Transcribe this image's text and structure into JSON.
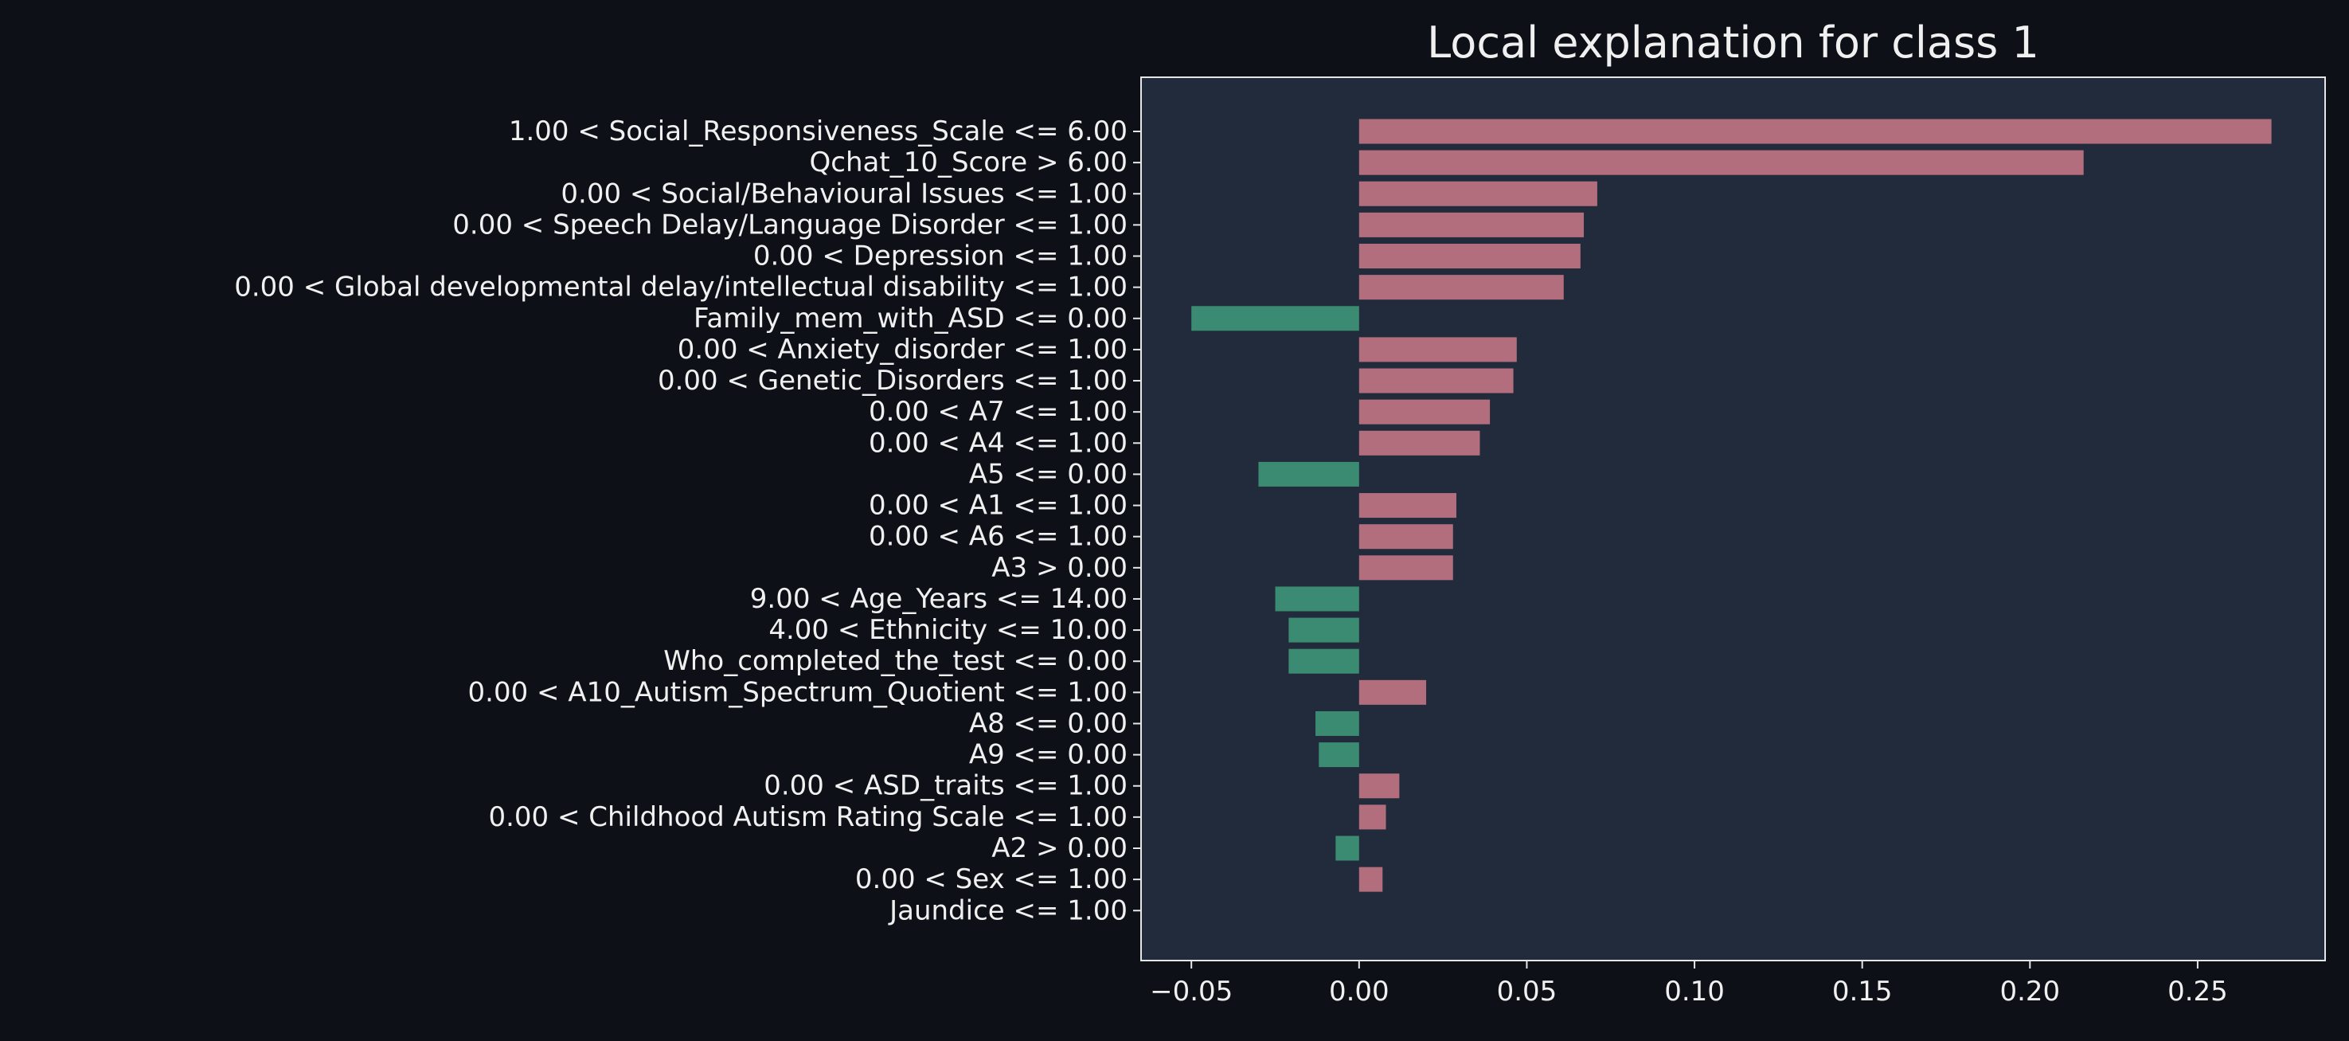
{
  "chart_data": {
    "type": "bar",
    "orientation": "horizontal",
    "title": "Local explanation for class 1",
    "xlabel": "",
    "ylabel": "",
    "xlim": [
      -0.065,
      0.288
    ],
    "grid": false,
    "legend": "none",
    "x_ticks": [
      -0.05,
      0.0,
      0.05,
      0.1,
      0.15,
      0.2,
      0.25
    ],
    "x_tick_labels": [
      "−0.05",
      "0.00",
      "0.05",
      "0.10",
      "0.15",
      "0.20",
      "0.25"
    ],
    "categories": [
      "1.00 < Social_Responsiveness_Scale <= 6.00",
      "Qchat_10_Score > 6.00",
      "0.00 < Social/Behavioural Issues <= 1.00",
      "0.00 < Speech Delay/Language Disorder <= 1.00",
      "0.00 < Depression <= 1.00",
      "0.00 < Global developmental delay/intellectual disability <= 1.00",
      "Family_mem_with_ASD <= 0.00",
      "0.00 < Anxiety_disorder <= 1.00",
      "0.00 < Genetic_Disorders <= 1.00",
      "0.00 < A7 <= 1.00",
      "0.00 < A4 <= 1.00",
      "A5 <= 0.00",
      "0.00 < A1 <= 1.00",
      "0.00 < A6 <= 1.00",
      "A3 > 0.00",
      "9.00 < Age_Years <= 14.00",
      "4.00 < Ethnicity <= 10.00",
      "Who_completed_the_test <= 0.00",
      "0.00 < A10_Autism_Spectrum_Quotient <= 1.00",
      "A8 <= 0.00",
      "A9 <= 0.00",
      "0.00 < ASD_traits <= 1.00",
      "0.00 < Childhood Autism Rating Scale <= 1.00",
      "A2 > 0.00",
      "0.00 < Sex <= 1.00",
      "Jaundice <= 1.00"
    ],
    "values": [
      0.272,
      0.216,
      0.071,
      0.067,
      0.066,
      0.061,
      -0.05,
      0.047,
      0.046,
      0.039,
      0.036,
      -0.03,
      0.029,
      0.028,
      0.028,
      -0.025,
      -0.021,
      -0.021,
      0.02,
      -0.013,
      -0.012,
      0.012,
      0.008,
      -0.007,
      0.007,
      0.0
    ],
    "colors": {
      "positive": "#b36e7e",
      "negative": "#3b8a72",
      "plot_background": "#222b3b",
      "figure_background": "#0d1117",
      "text": "#f0f0f0",
      "axis": "#e6e6e6"
    }
  }
}
